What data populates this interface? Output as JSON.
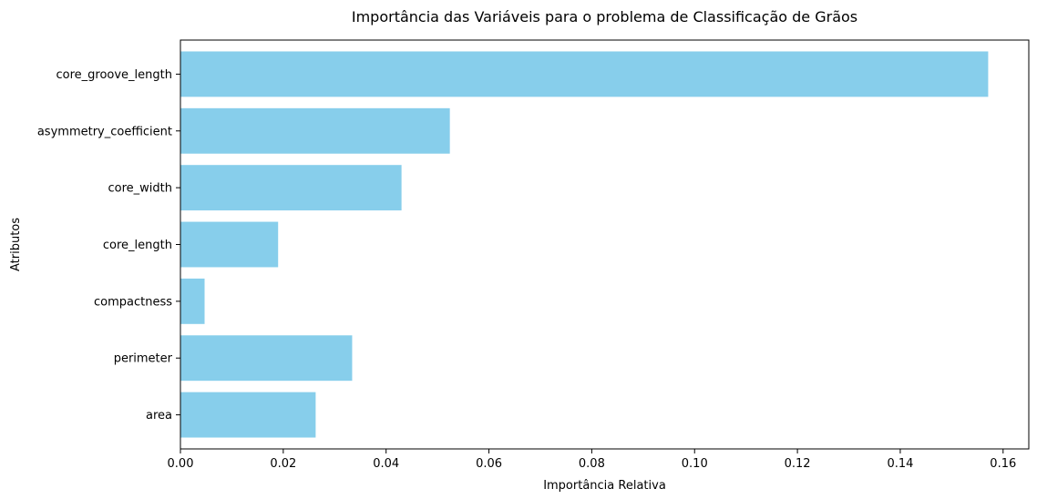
{
  "chart_data": {
    "type": "bar",
    "orientation": "horizontal",
    "title": "Importância das Variáveis para o problema de Classificação de Grãos",
    "xlabel": "Importância Relativa",
    "ylabel": "Atributos",
    "categories": [
      "area",
      "perimeter",
      "compactness",
      "core_length",
      "core_width",
      "asymmetry_coefficient",
      "core_groove_length"
    ],
    "values": [
      0.0263,
      0.0334,
      0.0047,
      0.019,
      0.043,
      0.0524,
      0.1571
    ],
    "xlim": [
      0,
      0.165
    ],
    "xticks": [
      0.0,
      0.02,
      0.04,
      0.06,
      0.08,
      0.1,
      0.12,
      0.14,
      0.16
    ],
    "xtick_labels": [
      "0.00",
      "0.02",
      "0.04",
      "0.06",
      "0.08",
      "0.10",
      "0.12",
      "0.14",
      "0.16"
    ],
    "bar_color": "#87ceeb",
    "grid": false,
    "legend": false
  }
}
